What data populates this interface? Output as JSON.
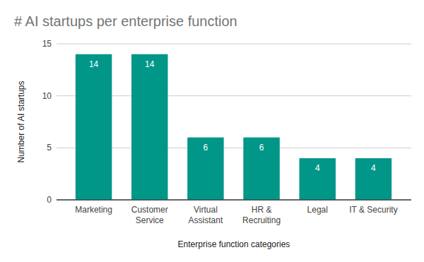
{
  "chart_data": {
    "type": "bar",
    "title": "# AI startups per enterprise function",
    "x_label": "Enterprise function categories",
    "y_label": "Number of AI startups",
    "categories": [
      "Marketing",
      "Customer Service",
      "Virtual Assistant",
      "HR & Recruiting",
      "Legal",
      "IT & Security"
    ],
    "values": [
      14,
      14,
      6,
      6,
      4,
      4
    ],
    "color": "#009688",
    "ylim": [
      0,
      15
    ],
    "yticks": [
      0,
      5,
      10,
      15
    ],
    "grid": true,
    "data_labels": true
  }
}
